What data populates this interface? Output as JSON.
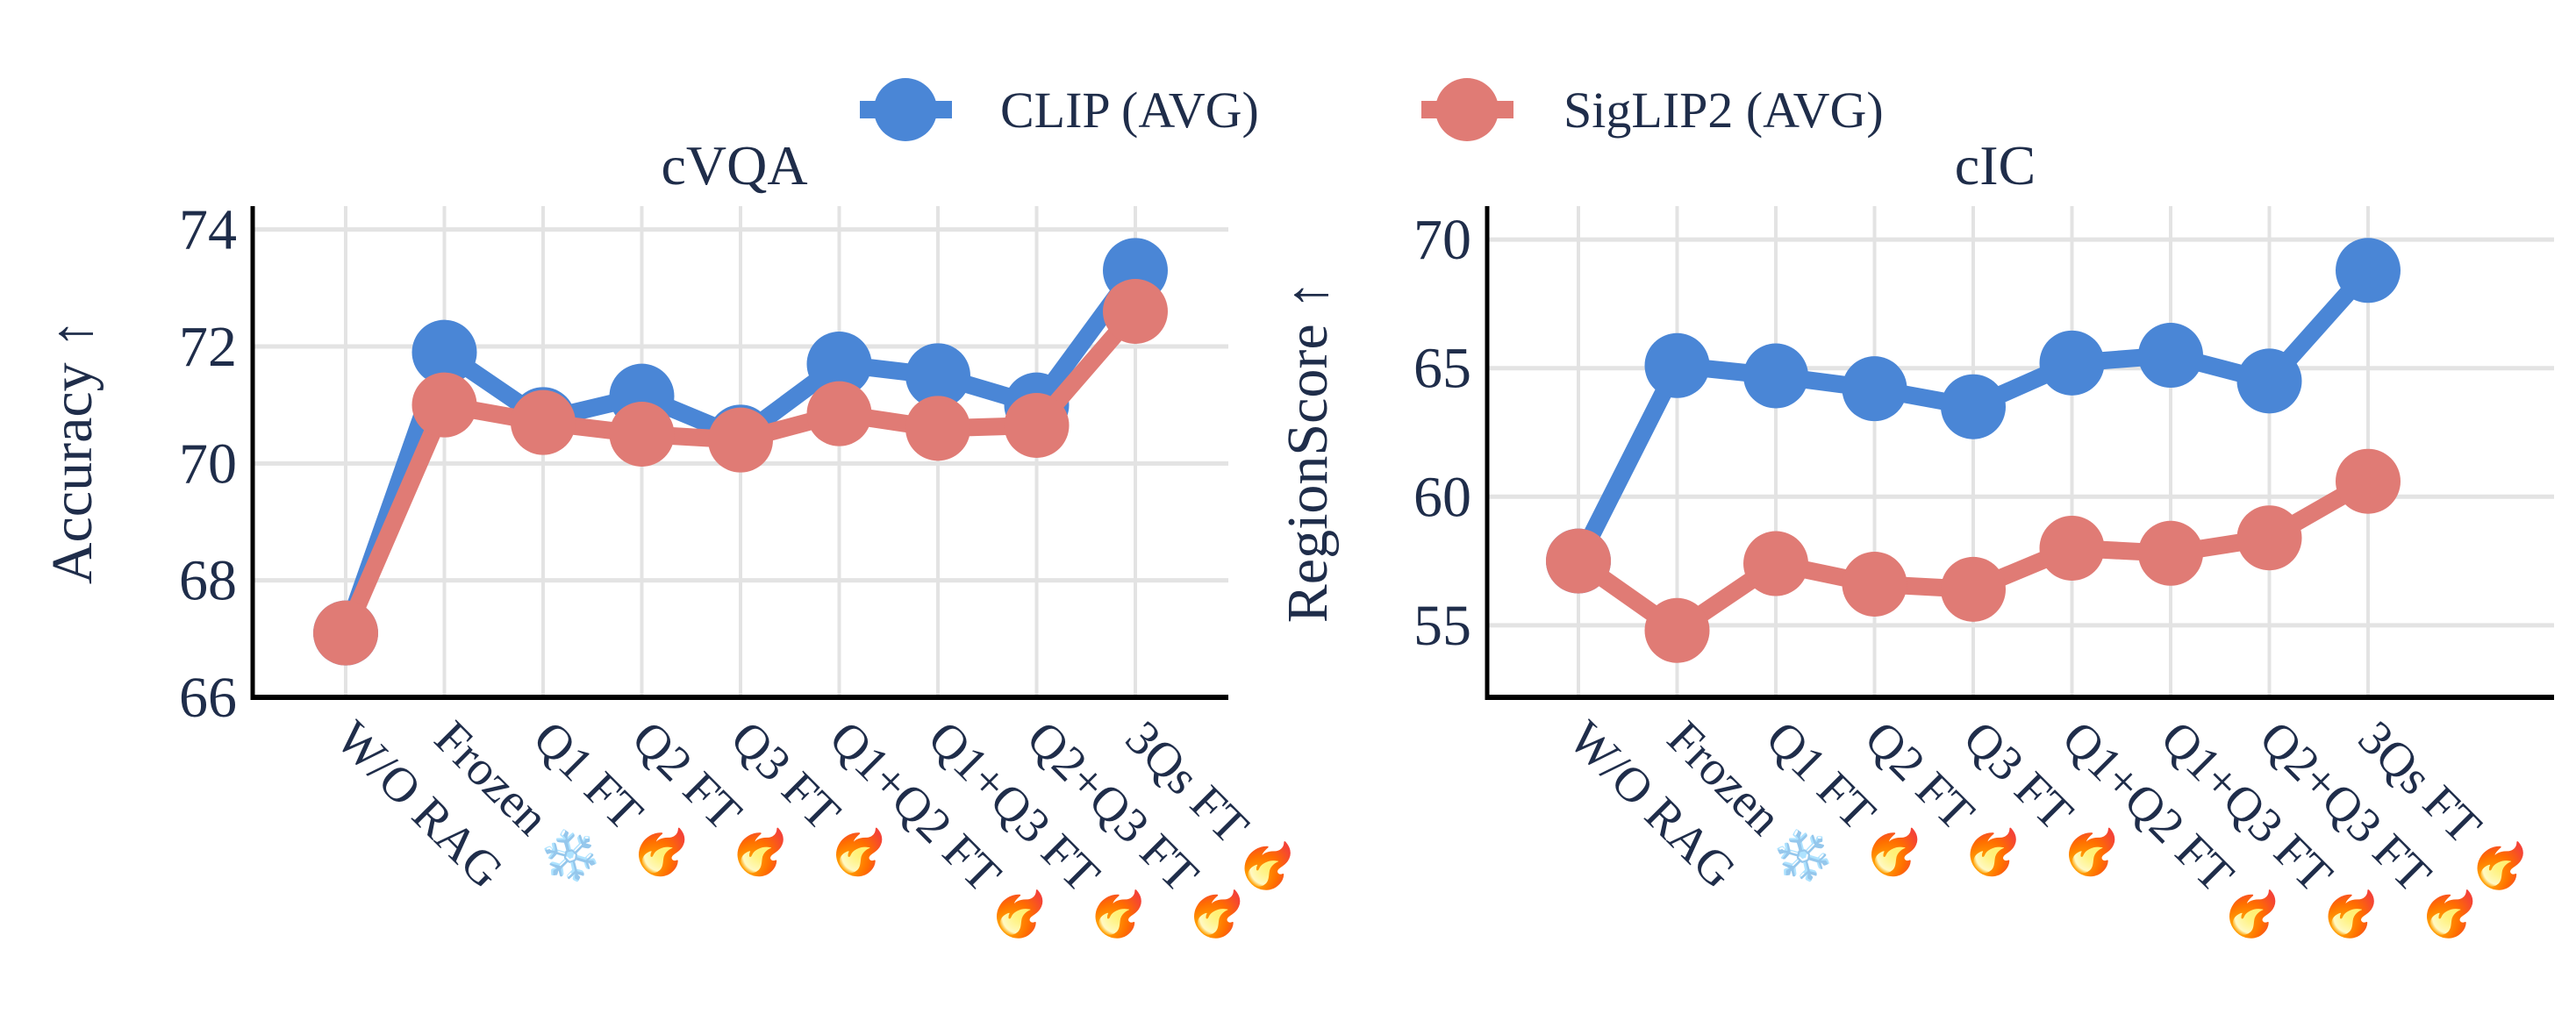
{
  "legend": {
    "placement": "top-center",
    "items": [
      "CLIP (AVG)",
      "SigLIP2 (AVG)"
    ]
  },
  "colors": {
    "CLIP (AVG)": "#4a86d6",
    "SigLIP2 (AVG)": "#e07b75",
    "text": "#1f2d4a",
    "grid": "#e3e3e3"
  },
  "chart_data": [
    {
      "type": "line",
      "title": "cVQA",
      "xlabel": "",
      "ylabel": "Accuracy ↑",
      "categories": [
        "W/O RAG",
        "Frozen ❄️",
        "Q1 FT 🔥",
        "Q2 FT 🔥",
        "Q3 FT 🔥",
        "Q1+Q2 FT 🔥",
        "Q1+Q3 FT 🔥",
        "Q2+Q3 FT 🔥",
        "3Qs FT 🔥"
      ],
      "ylim": [
        66,
        74.4
      ],
      "yticks": [
        66,
        68,
        70,
        72,
        74
      ],
      "grid": true,
      "series": [
        {
          "name": "CLIP (AVG)",
          "values": [
            67.1,
            71.9,
            70.75,
            71.15,
            70.45,
            71.7,
            71.5,
            71.0,
            73.3
          ]
        },
        {
          "name": "SigLIP2 (AVG)",
          "values": [
            67.1,
            71.0,
            70.7,
            70.5,
            70.4,
            70.85,
            70.6,
            70.65,
            72.6
          ]
        }
      ]
    },
    {
      "type": "line",
      "title": "cIC",
      "xlabel": "",
      "ylabel": "RegionScore ↑",
      "categories": [
        "W/O RAG",
        "Frozen ❄️",
        "Q1 FT 🔥",
        "Q2 FT 🔥",
        "Q3 FT 🔥",
        "Q1+Q2 FT 🔥",
        "Q1+Q3 FT 🔥",
        "Q2+Q3 FT 🔥",
        "3Qs FT 🔥"
      ],
      "ylim": [
        52.2,
        71.3
      ],
      "yticks": [
        55,
        60,
        65,
        70
      ],
      "grid": true,
      "series": [
        {
          "name": "CLIP (AVG)",
          "values": [
            57.5,
            65.1,
            64.7,
            64.2,
            63.5,
            65.2,
            65.5,
            64.5,
            68.8
          ]
        },
        {
          "name": "SigLIP2 (AVG)",
          "values": [
            57.5,
            54.8,
            57.4,
            56.6,
            56.4,
            58.0,
            57.8,
            58.4,
            60.6
          ]
        }
      ]
    }
  ]
}
